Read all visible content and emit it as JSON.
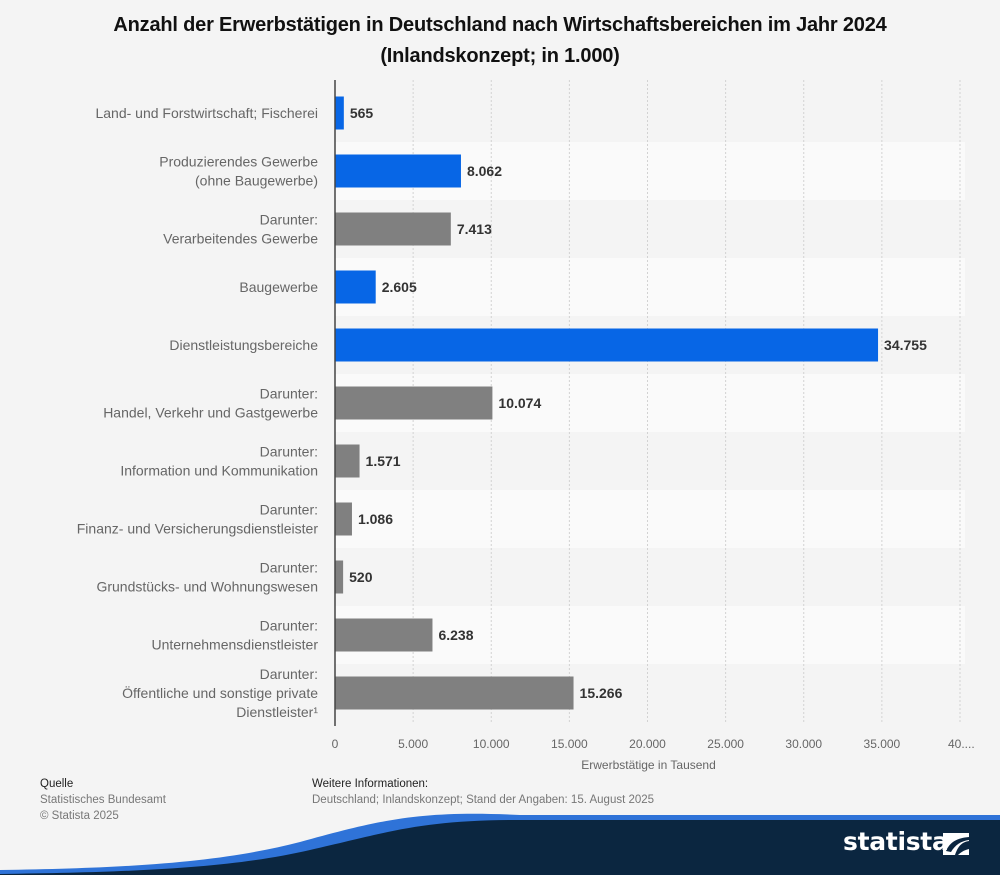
{
  "title": "Anzahl der Erwerbstätigen in Deutschland nach Wirtschaftsbereichen im Jahr 2024 (Inlandskonzept; in 1.000)",
  "chart_data": {
    "type": "bar",
    "orientation": "horizontal",
    "title": "Anzahl der Erwerbstätigen in Deutschland nach Wirtschaftsbereichen im Jahr 2024 (Inlandskonzept; in 1.000)",
    "xlabel": "Erwerbstätige in Tausend",
    "ylabel": "",
    "xlim": [
      0,
      40000
    ],
    "grid": true,
    "ticks": [
      "0",
      "5.000",
      "10.000",
      "15.000",
      "20.000",
      "25.000",
      "30.000",
      "35.000",
      "40...."
    ],
    "tick_values": [
      0,
      5000,
      10000,
      15000,
      20000,
      25000,
      30000,
      35000,
      40000
    ],
    "categories": [
      [
        "Land- und Forstwirtschaft; Fischerei"
      ],
      [
        "Produzierendes Gewerbe",
        "(ohne Baugewerbe)"
      ],
      [
        "Darunter:",
        "Verarbeitendes Gewerbe"
      ],
      [
        "Baugewerbe"
      ],
      [
        "Dienstleistungsbereiche"
      ],
      [
        "Darunter:",
        "Handel, Verkehr und Gastgewerbe"
      ],
      [
        "Darunter:",
        "Information und Kommunikation"
      ],
      [
        "Darunter:",
        "Finanz- und Versicherungsdienstleister"
      ],
      [
        "Darunter:",
        "Grundstücks- und Wohnungswesen"
      ],
      [
        "Darunter:",
        "Unternehmensdienstleister"
      ],
      [
        "Darunter:",
        "Öffentliche und sonstige private",
        "Dienstleister¹"
      ]
    ],
    "values": [
      565,
      8062,
      7413,
      2605,
      34755,
      10074,
      1571,
      1086,
      520,
      6238,
      15266
    ],
    "value_labels": [
      "565",
      "8.062",
      "7.413",
      "2.605",
      "34.755",
      "10.074",
      "1.571",
      "1.086",
      "520",
      "6.238",
      "15.266"
    ],
    "bar_types": [
      "main",
      "main",
      "sub",
      "main",
      "main",
      "sub",
      "sub",
      "sub",
      "sub",
      "sub",
      "sub"
    ],
    "colors": {
      "main": "#0766e6",
      "sub": "#808080"
    }
  },
  "footer": {
    "source_heading": "Quelle",
    "source_text": "Statistisches Bundesamt",
    "copyright": "© Statista 2025",
    "info_heading": "Weitere Informationen:",
    "info_text": "Deutschland; Inlandskonzept; Stand der Angaben: 15. August 2025"
  },
  "brand": {
    "name": "statista",
    "logo_icon": "statista-logo-icon",
    "colors": {
      "navy": "#0b2640",
      "accent": "#2f73d8"
    }
  }
}
